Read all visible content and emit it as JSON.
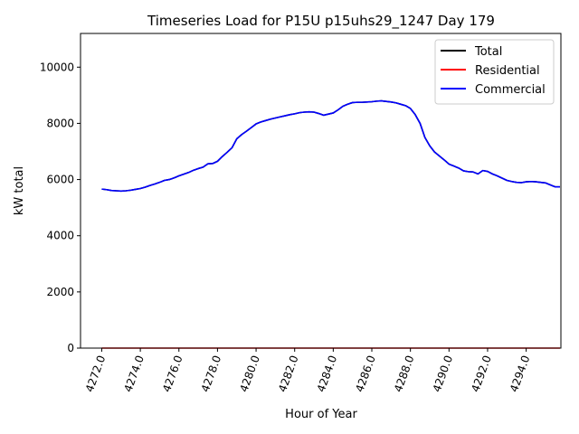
{
  "chart_data": {
    "type": "line",
    "title": "Timeseries Load for P15U p15uhs29_1247  Day 179",
    "xlabel": "Hour of Year",
    "ylabel": "kW total",
    "xlim": [
      4270.9,
      4295.8
    ],
    "ylim": [
      0,
      11200
    ],
    "xticks": [
      4272,
      4274,
      4276,
      4278,
      4280,
      4282,
      4284,
      4286,
      4288,
      4290,
      4292,
      4294
    ],
    "xtick_labels": [
      "4272.0",
      "4274.0",
      "4276.0",
      "4278.0",
      "4280.0",
      "4282.0",
      "4284.0",
      "4286.0",
      "4288.0",
      "4290.0",
      "4292.0",
      "4294.0"
    ],
    "yticks": [
      0,
      2000,
      4000,
      6000,
      8000,
      10000
    ],
    "ytick_labels": [
      "0",
      "2000",
      "4000",
      "6000",
      "8000",
      "10000"
    ],
    "grid": false,
    "legend_position": "upper right",
    "series": [
      {
        "name": "Total",
        "color": "#000000",
        "x": [
          4272.0,
          4272.25,
          4272.5,
          4272.75,
          4273.0,
          4273.25,
          4273.5,
          4273.75,
          4274.0,
          4274.25,
          4274.5,
          4274.75,
          4275.0,
          4275.25,
          4275.5,
          4275.75,
          4276.0,
          4276.25,
          4276.5,
          4276.75,
          4277.0,
          4277.25,
          4277.5,
          4277.75,
          4278.0,
          4278.25,
          4278.5,
          4278.75,
          4279.0,
          4279.25,
          4279.5,
          4279.75,
          4280.0,
          4280.25,
          4280.5,
          4280.75,
          4281.0,
          4281.25,
          4281.5,
          4281.75,
          4282.0,
          4282.25,
          4282.5,
          4282.75,
          4283.0,
          4283.25,
          4283.5,
          4283.75,
          4284.0,
          4284.25,
          4284.5,
          4284.75,
          4285.0,
          4285.25,
          4285.5,
          4285.75,
          4286.0,
          4286.25,
          4286.5,
          4286.75,
          4287.0,
          4287.25,
          4287.5,
          4287.75,
          4288.0,
          4288.25,
          4288.5,
          4288.75,
          4289.0,
          4289.25,
          4289.5,
          4289.75,
          4290.0,
          4290.25,
          4290.5,
          4290.75,
          4291.0,
          4291.25,
          4291.5,
          4291.75,
          4292.0,
          4292.25,
          4292.5,
          4292.75,
          4293.0,
          4293.25,
          4293.5,
          4293.75,
          4294.0,
          4294.25,
          4294.5,
          4294.75,
          4295.0,
          4295.25,
          4295.5,
          4295.75
        ],
        "values": [
          5660,
          5640,
          5610,
          5600,
          5590,
          5600,
          5620,
          5650,
          5680,
          5730,
          5790,
          5840,
          5900,
          5970,
          6000,
          6060,
          6130,
          6190,
          6250,
          6330,
          6390,
          6440,
          6560,
          6570,
          6650,
          6820,
          6970,
          7130,
          7450,
          7600,
          7720,
          7850,
          7980,
          8050,
          8100,
          8150,
          8190,
          8230,
          8270,
          8310,
          8340,
          8380,
          8400,
          8410,
          8400,
          8350,
          8290,
          8330,
          8370,
          8480,
          8610,
          8680,
          8740,
          8750,
          8750,
          8760,
          8770,
          8790,
          8800,
          8780,
          8760,
          8730,
          8680,
          8630,
          8530,
          8310,
          8000,
          7500,
          7200,
          6980,
          6840,
          6700,
          6550,
          6480,
          6410,
          6310,
          6280,
          6270,
          6200,
          6320,
          6290,
          6200,
          6130,
          6050,
          5970,
          5930,
          5900,
          5890,
          5920,
          5930,
          5920,
          5900,
          5880,
          5810,
          5740,
          5740
        ]
      },
      {
        "name": "Residential",
        "color": "#ff0000",
        "x": [
          4272.0,
          4295.75
        ],
        "values": [
          0,
          0
        ]
      },
      {
        "name": "Commercial",
        "color": "#0000ff",
        "x": [
          4272.0,
          4272.25,
          4272.5,
          4272.75,
          4273.0,
          4273.25,
          4273.5,
          4273.75,
          4274.0,
          4274.25,
          4274.5,
          4274.75,
          4275.0,
          4275.25,
          4275.5,
          4275.75,
          4276.0,
          4276.25,
          4276.5,
          4276.75,
          4277.0,
          4277.25,
          4277.5,
          4277.75,
          4278.0,
          4278.25,
          4278.5,
          4278.75,
          4279.0,
          4279.25,
          4279.5,
          4279.75,
          4280.0,
          4280.25,
          4280.5,
          4280.75,
          4281.0,
          4281.25,
          4281.5,
          4281.75,
          4282.0,
          4282.25,
          4282.5,
          4282.75,
          4283.0,
          4283.25,
          4283.5,
          4283.75,
          4284.0,
          4284.25,
          4284.5,
          4284.75,
          4285.0,
          4285.25,
          4285.5,
          4285.75,
          4286.0,
          4286.25,
          4286.5,
          4286.75,
          4287.0,
          4287.25,
          4287.5,
          4287.75,
          4288.0,
          4288.25,
          4288.5,
          4288.75,
          4289.0,
          4289.25,
          4289.5,
          4289.75,
          4290.0,
          4290.25,
          4290.5,
          4290.75,
          4291.0,
          4291.25,
          4291.5,
          4291.75,
          4292.0,
          4292.25,
          4292.5,
          4292.75,
          4293.0,
          4293.25,
          4293.5,
          4293.75,
          4294.0,
          4294.25,
          4294.5,
          4294.75,
          4295.0,
          4295.25,
          4295.5,
          4295.75
        ],
        "values": [
          5660,
          5640,
          5610,
          5600,
          5590,
          5600,
          5620,
          5650,
          5680,
          5730,
          5790,
          5840,
          5900,
          5970,
          6000,
          6060,
          6130,
          6190,
          6250,
          6330,
          6390,
          6440,
          6560,
          6570,
          6650,
          6820,
          6970,
          7130,
          7450,
          7600,
          7720,
          7850,
          7980,
          8050,
          8100,
          8150,
          8190,
          8230,
          8270,
          8310,
          8340,
          8380,
          8400,
          8410,
          8400,
          8350,
          8290,
          8330,
          8370,
          8480,
          8610,
          8680,
          8740,
          8750,
          8750,
          8760,
          8770,
          8790,
          8800,
          8780,
          8760,
          8730,
          8680,
          8630,
          8530,
          8310,
          8000,
          7500,
          7200,
          6980,
          6840,
          6700,
          6550,
          6480,
          6410,
          6310,
          6280,
          6270,
          6200,
          6320,
          6290,
          6200,
          6130,
          6050,
          5970,
          5930,
          5900,
          5890,
          5920,
          5930,
          5920,
          5900,
          5880,
          5810,
          5740,
          5740
        ]
      }
    ]
  }
}
